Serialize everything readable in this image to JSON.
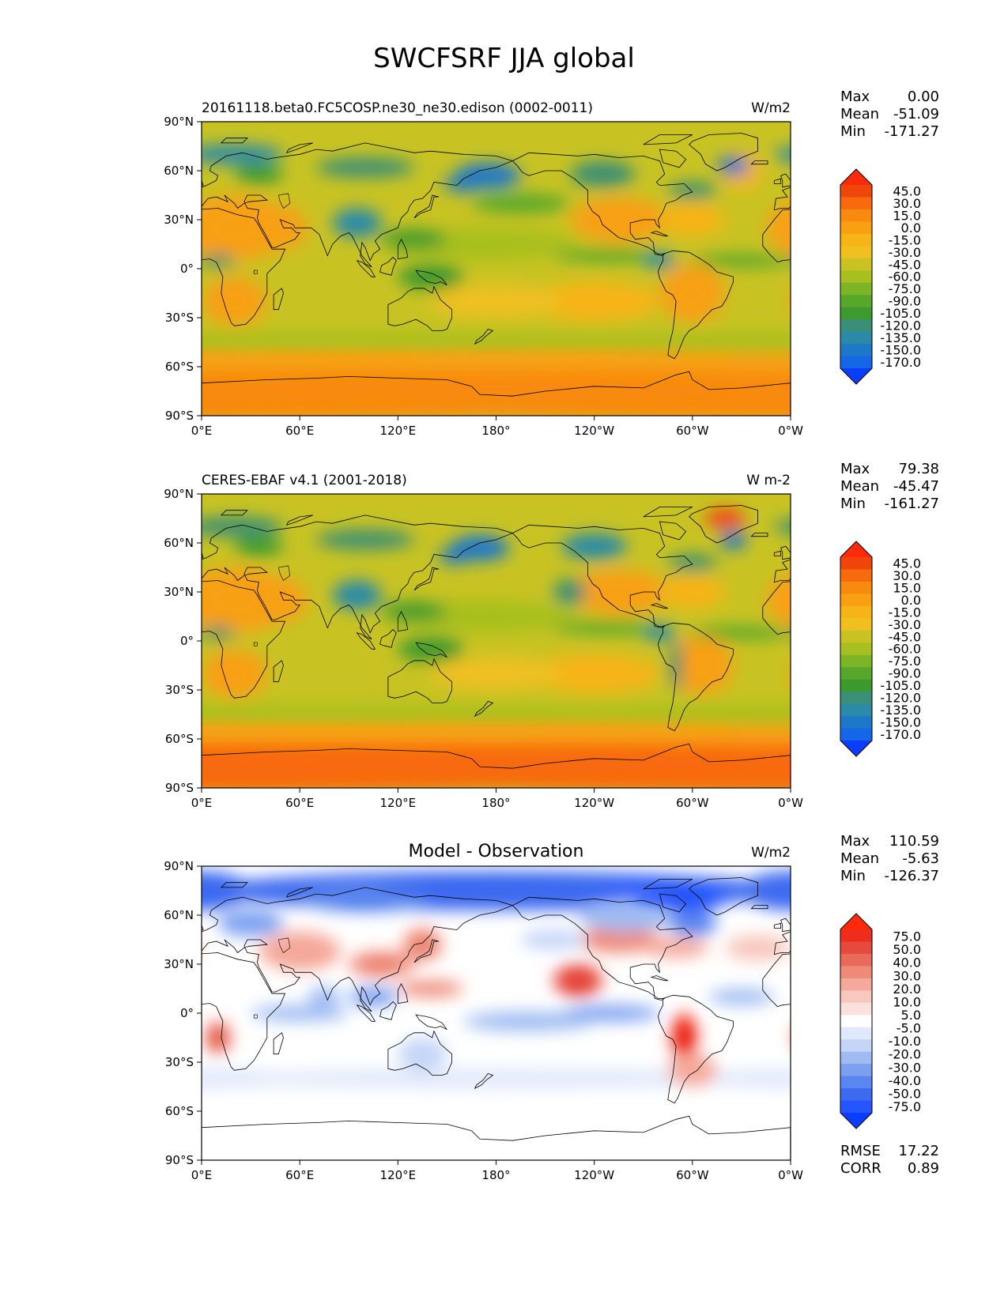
{
  "figure": {
    "title": "SWCFSRF JJA global"
  },
  "colors": {
    "field_levels": [
      "#0a3dff",
      "#1567e8",
      "#1e78c8",
      "#2a8aa8",
      "#3a8f76",
      "#3d9a2e",
      "#57a82a",
      "#7cb526",
      "#a7c01f",
      "#c8c323",
      "#f0c020",
      "#f7b417",
      "#f8a012",
      "#f88a10",
      "#f86a0e",
      "#f1460b",
      "#ff2a0a"
    ],
    "diff_levels": [
      "#0a3dff",
      "#2455ff",
      "#3c6af0",
      "#5a86ef",
      "#7ba0f0",
      "#9fbcf2",
      "#c5d5f7",
      "#e0e8fb",
      "#ffffff",
      "#fbe0dc",
      "#f8c7bd",
      "#f5a99a",
      "#ef8a78",
      "#e96a5a",
      "#e64a3c",
      "#ee2d1c",
      "#ff2a0a"
    ],
    "coastline": "#000000",
    "land": "#e7a326"
  },
  "panels": [
    {
      "left_title": "20161118.beta0.FC5COSP.ne30_ne30.edison (0002-0011)",
      "center_title": "",
      "units": "W/m2",
      "stats": [
        {
          "label": "Max",
          "value": "0.00"
        },
        {
          "label": "Mean",
          "value": "-51.09"
        },
        {
          "label": "Min",
          "value": "-171.27"
        }
      ],
      "colorbar_ticks": [
        "45.0",
        "30.0",
        "15.0",
        "0.0",
        "-15.0",
        "-30.0",
        "-45.0",
        "-60.0",
        "-75.0",
        "-90.0",
        "-105.0",
        "-120.0",
        "-135.0",
        "-150.0",
        "-170.0"
      ],
      "extra_stats": []
    },
    {
      "left_title": "CERES-EBAF v4.1 (2001-2018)",
      "center_title": "",
      "units": "W m-2",
      "stats": [
        {
          "label": "Max",
          "value": "79.38"
        },
        {
          "label": "Mean",
          "value": "-45.47"
        },
        {
          "label": "Min",
          "value": "-161.27"
        }
      ],
      "colorbar_ticks": [
        "45.0",
        "30.0",
        "15.0",
        "0.0",
        "-15.0",
        "-30.0",
        "-45.0",
        "-60.0",
        "-75.0",
        "-90.0",
        "-105.0",
        "-120.0",
        "-135.0",
        "-150.0",
        "-170.0"
      ],
      "extra_stats": []
    },
    {
      "left_title": "",
      "center_title": "Model - Observation",
      "units": "W/m2",
      "stats": [
        {
          "label": "Max",
          "value": "110.59"
        },
        {
          "label": "Mean",
          "value": "-5.63"
        },
        {
          "label": "Min",
          "value": "-126.37"
        }
      ],
      "colorbar_ticks": [
        "75.0",
        "50.0",
        "40.0",
        "30.0",
        "20.0",
        "10.0",
        "5.0",
        "-5.0",
        "-10.0",
        "-20.0",
        "-30.0",
        "-40.0",
        "-50.0",
        "-75.0"
      ],
      "extra_stats": [
        {
          "label": "RMSE",
          "value": "17.22"
        },
        {
          "label": "CORR",
          "value": "0.89"
        }
      ]
    }
  ],
  "axes": {
    "lat_ticks": [
      "90°N",
      "60°N",
      "30°N",
      "0°",
      "30°S",
      "60°S",
      "90°S"
    ],
    "lon_ticks": [
      "0°E",
      "60°E",
      "120°E",
      "180°",
      "120°W",
      "60°W",
      "0°W"
    ]
  }
}
